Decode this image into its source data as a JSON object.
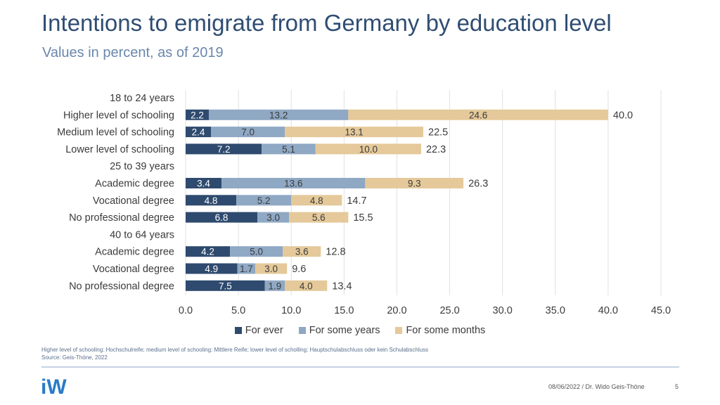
{
  "title": "Intentions to emigrate from Germany by education level",
  "subtitle": "Values in percent, as of 2019",
  "colors": {
    "for_ever": "#2e4a6e",
    "for_some_years": "#8fa8c4",
    "for_some_months": "#e5c99a",
    "axis": "#e0e0e0"
  },
  "chart_data": {
    "type": "bar",
    "orientation": "horizontal",
    "stacked": true,
    "xlim": [
      0,
      45
    ],
    "x_ticks": [
      "0.0",
      "5.0",
      "10.0",
      "15.0",
      "20.0",
      "25.0",
      "30.0",
      "35.0",
      "40.0",
      "45.0"
    ],
    "x_tick_values": [
      0,
      5,
      10,
      15,
      20,
      25,
      30,
      35,
      40,
      45
    ],
    "rows": [
      {
        "label": "18 to 24 years",
        "group_header": true
      },
      {
        "label": "Higher level of schooling",
        "values": [
          2.2,
          13.2,
          24.6
        ],
        "total": "40.0"
      },
      {
        "label": "Medium level of schooling",
        "values": [
          2.4,
          7.0,
          13.1
        ],
        "total": "22.5"
      },
      {
        "label": "Lower level of schooling",
        "values": [
          7.2,
          5.1,
          10.0
        ],
        "total": "22.3"
      },
      {
        "label": "25 to 39 years",
        "group_header": true
      },
      {
        "label": "Academic degree",
        "values": [
          3.4,
          13.6,
          9.3
        ],
        "total": "26.3"
      },
      {
        "label": "Vocational degree",
        "values": [
          4.8,
          5.2,
          4.8
        ],
        "total": "14.7"
      },
      {
        "label": "No professional degree",
        "values": [
          6.8,
          3.0,
          5.6
        ],
        "total": "15.5"
      },
      {
        "label": "40 to 64 years",
        "group_header": true
      },
      {
        "label": "Academic degree",
        "values": [
          4.2,
          5.0,
          3.6
        ],
        "total": "12.8"
      },
      {
        "label": "Vocational degree",
        "values": [
          4.9,
          1.7,
          3.0
        ],
        "total": "9.6"
      },
      {
        "label": "No professional degree",
        "values": [
          7.5,
          1.9,
          4.0
        ],
        "total": "13.4"
      }
    ],
    "series": [
      {
        "name": "For ever"
      },
      {
        "name": "For some years"
      },
      {
        "name": "For some months"
      }
    ],
    "legend_position": "bottom"
  },
  "legend": {
    "for_ever": "For ever",
    "for_some_years": "For some years",
    "for_some_months": "For some months"
  },
  "footnote": {
    "line1": "Higher level of schooling: Hochschulreife; medium level of schooling: Mittlere Reife; lower level of scholling: Hauptschulabschluss oder kein Schulabschluss",
    "line2": "Source: Geis-Thöne, 2022"
  },
  "logo_text": "iW",
  "footer": {
    "date_author": "08/06/2022 / Dr. Wido Geis-Thöne",
    "page": "5"
  }
}
